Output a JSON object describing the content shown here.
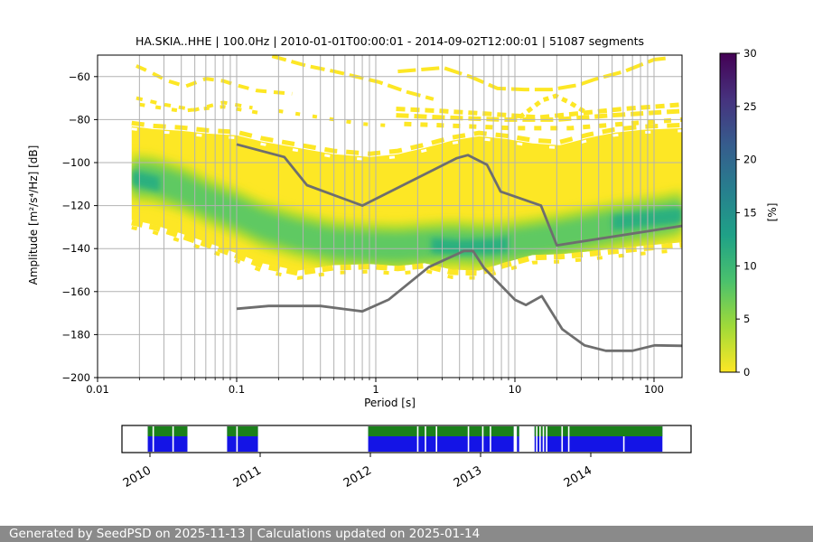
{
  "footer": {
    "text": "Generated by SeedPSD on 2025-11-13 | Calculations updated on 2025-01-14"
  },
  "chart_data": {
    "type": "heatmap",
    "title": "HA.SKIA..HHE | 100.0Hz | 2010-01-01T00:00:01 - 2014-09-02T12:00:01 | 51087 segments",
    "xlabel": "Period [s]",
    "ylabel": "Amplitude [m²/s⁴/Hz] [dB]",
    "x_scale": "log",
    "xlim": [
      0.01,
      160
    ],
    "ylim": [
      -200,
      -50
    ],
    "x_ticks": [
      {
        "value": 0.01,
        "label": "0.01"
      },
      {
        "value": 0.1,
        "label": "0.1"
      },
      {
        "value": 1,
        "label": "1"
      },
      {
        "value": 10,
        "label": "10"
      },
      {
        "value": 100,
        "label": "100"
      }
    ],
    "y_ticks": [
      {
        "value": -60,
        "label": "−60"
      },
      {
        "value": -80,
        "label": "−80"
      },
      {
        "value": -100,
        "label": "−100"
      },
      {
        "value": -120,
        "label": "−120"
      },
      {
        "value": -140,
        "label": "−140"
      },
      {
        "value": -160,
        "label": "−160"
      },
      {
        "value": -180,
        "label": "−180"
      },
      {
        "value": -200,
        "label": "−200"
      }
    ],
    "grid": true,
    "colorbar": {
      "label": "[%]",
      "lim": [
        0,
        30
      ],
      "ticks": [
        0,
        5,
        10,
        15,
        20,
        25,
        30
      ],
      "colormap": "viridis_r",
      "colors_top_to_bottom": [
        "#440154",
        "#46327e",
        "#365c8d",
        "#277f8e",
        "#1fa187",
        "#4ac16d",
        "#a0da39",
        "#fde725"
      ]
    },
    "colors": {
      "hist_low": "#fde725",
      "hist_halo": "#b5de2b",
      "hist_mode": "#5ec962",
      "hist_peak": "#2bb07f",
      "grid": "#b2b2b2",
      "noise_model": "#6e6e6e"
    },
    "noise_models": {
      "nhnm": [
        [
          0.1,
          -91.5
        ],
        [
          0.22,
          -97.4
        ],
        [
          0.32,
          -110.5
        ],
        [
          0.8,
          -120.0
        ],
        [
          3.8,
          -98.0
        ],
        [
          4.6,
          -96.5
        ],
        [
          6.3,
          -101.0
        ],
        [
          7.9,
          -113.5
        ],
        [
          15.4,
          -120.0
        ],
        [
          20.0,
          -138.5
        ],
        [
          160,
          -129.4
        ]
      ],
      "nlnm": [
        [
          0.1,
          -168.0
        ],
        [
          0.17,
          -166.7
        ],
        [
          0.4,
          -166.7
        ],
        [
          0.8,
          -169.2
        ],
        [
          1.24,
          -163.7
        ],
        [
          2.4,
          -148.6
        ],
        [
          4.3,
          -141.1
        ],
        [
          5.0,
          -141.1
        ],
        [
          6.0,
          -149.0
        ],
        [
          10.0,
          -163.8
        ],
        [
          12.0,
          -166.2
        ],
        [
          15.6,
          -162.1
        ],
        [
          21.9,
          -177.5
        ],
        [
          31.6,
          -185.0
        ],
        [
          45.0,
          -187.5
        ],
        [
          70.0,
          -187.5
        ],
        [
          101.0,
          -185.0
        ],
        [
          160,
          -185.2
        ]
      ]
    },
    "histogram": {
      "envelope": [
        [
          0.0176,
          -83.1,
          -126.7
        ],
        [
          0.025,
          -84.4,
          -128.8
        ],
        [
          0.04,
          -85.2,
          -133.0
        ],
        [
          0.062,
          -86.5,
          -137.2
        ],
        [
          0.1,
          -87.3,
          -142.2
        ],
        [
          0.152,
          -90.2,
          -146.8
        ],
        [
          0.276,
          -93.2,
          -150.2
        ],
        [
          0.5,
          -96.1,
          -147.7
        ],
        [
          0.91,
          -97.4,
          -147.2
        ],
        [
          1.44,
          -96.1,
          -148.1
        ],
        [
          2.25,
          -93.2,
          -146.8
        ],
        [
          3.52,
          -89.8,
          -149.8
        ],
        [
          5.52,
          -87.7,
          -150.2
        ],
        [
          8.6,
          -89.0,
          -146.4
        ],
        [
          13.4,
          -91.1,
          -143.0
        ],
        [
          21.1,
          -91.9,
          -142.6
        ],
        [
          33.2,
          -88.6,
          -141.4
        ],
        [
          52,
          -86.1,
          -140.1
        ],
        [
          81.5,
          -84.8,
          -138.8
        ],
        [
          159,
          -84.0,
          -137.1
        ]
      ],
      "mode": [
        [
          0.0176,
          -107.0
        ],
        [
          0.025,
          -107.8
        ],
        [
          0.04,
          -112.0
        ],
        [
          0.062,
          -117.9
        ],
        [
          0.1,
          -123.3
        ],
        [
          0.152,
          -128.8
        ],
        [
          0.276,
          -133.8
        ],
        [
          0.5,
          -137.6
        ],
        [
          0.91,
          -138.9
        ],
        [
          1.44,
          -139.3
        ],
        [
          2.25,
          -138.4
        ],
        [
          3.52,
          -137.6
        ],
        [
          5.52,
          -138.5
        ],
        [
          8.6,
          -138.0
        ],
        [
          13.4,
          -136.3
        ],
        [
          21.1,
          -134.2
        ],
        [
          33.2,
          -131.7
        ],
        [
          52,
          -129.2
        ],
        [
          81.5,
          -127.1
        ],
        [
          120,
          -125.5
        ],
        [
          159,
          -123.7
        ]
      ],
      "halo_halfwidth_db": 11,
      "mode_halfwidth_db": 7,
      "peak_halfwidth_db": 3.5,
      "peak_segments": [
        [
          [
            0.0176,
            -107.0
          ],
          [
            0.028,
            -110.0
          ]
        ],
        [
          [
            2.5,
            -138.5
          ],
          [
            4.0,
            -139.5
          ],
          [
            7.0,
            -139.0
          ],
          [
            9.0,
            -138.0
          ]
        ],
        [
          [
            50,
            -128.0
          ],
          [
            90,
            -126.0
          ],
          [
            159,
            -124.5
          ]
        ]
      ]
    },
    "artifact_traces": [
      {
        "dash": "12 8",
        "w": 4,
        "pts": [
          [
            0.019,
            -55
          ],
          [
            0.024,
            -58
          ],
          [
            0.032,
            -62
          ],
          [
            0.043,
            -64.5
          ],
          [
            0.06,
            -61
          ],
          [
            0.08,
            -62
          ],
          [
            0.1,
            -64
          ],
          [
            0.14,
            -66.5
          ],
          [
            0.25,
            -68
          ]
        ]
      },
      {
        "dash": "16 6",
        "w": 4,
        "pts": [
          [
            0.18,
            -50.5
          ],
          [
            0.32,
            -55
          ],
          [
            0.5,
            -57.5
          ],
          [
            1.05,
            -62.5
          ],
          [
            1.65,
            -67
          ],
          [
            2.6,
            -70.5
          ]
        ]
      },
      {
        "dash": "20 6",
        "w": 4,
        "pts": [
          [
            1.44,
            -57.6
          ],
          [
            3.06,
            -55.9
          ],
          [
            4.8,
            -60.1
          ],
          [
            7.5,
            -65.5
          ],
          [
            11.7,
            -66
          ],
          [
            18.3,
            -66
          ],
          [
            28.6,
            -63.9
          ],
          [
            37,
            -61.4
          ],
          [
            61,
            -57.6
          ],
          [
            100,
            -52.1
          ],
          [
            129,
            -51.3
          ]
        ]
      },
      {
        "dash": "6 5",
        "w": 5,
        "pts": [
          [
            10.8,
            -79
          ],
          [
            15.7,
            -71
          ],
          [
            19.7,
            -69
          ],
          [
            24.7,
            -72
          ],
          [
            33,
            -77
          ]
        ]
      },
      {
        "dash": "10 6",
        "w": 5,
        "pts": [
          [
            1.4,
            -75
          ],
          [
            3,
            -76
          ],
          [
            7,
            -77.5
          ],
          [
            15,
            -79
          ],
          [
            30,
            -77
          ],
          [
            60,
            -75
          ],
          [
            100,
            -74
          ],
          [
            159,
            -73
          ]
        ]
      },
      {
        "dash": "7 9",
        "w": 4,
        "pts": [
          [
            0.019,
            -70
          ],
          [
            0.03,
            -73
          ],
          [
            0.05,
            -75.5
          ],
          [
            0.08,
            -72
          ],
          [
            0.13,
            -74.5
          ]
        ]
      },
      {
        "dash": "14 6",
        "w": 5,
        "pts": [
          [
            1.4,
            -78
          ],
          [
            3,
            -79
          ],
          [
            8,
            -80
          ],
          [
            20,
            -80
          ],
          [
            50,
            -78
          ],
          [
            159,
            -76
          ]
        ]
      },
      {
        "dash": "8 10",
        "w": 5,
        "pts": [
          [
            1.6,
            -82
          ],
          [
            4,
            -83
          ],
          [
            10,
            -84
          ],
          [
            25,
            -84
          ],
          [
            60,
            -82
          ],
          [
            159,
            -80
          ]
        ]
      },
      {
        "dash": "6 12",
        "w": 4,
        "pts": [
          [
            0.02,
            -73
          ],
          [
            0.04,
            -76
          ],
          [
            0.08,
            -74
          ],
          [
            0.15,
            -77
          ]
        ]
      },
      {
        "dash": "5 14",
        "w": 4,
        "pts": [
          [
            0.2,
            -76
          ],
          [
            0.4,
            -79
          ],
          [
            0.8,
            -82
          ],
          [
            1.4,
            -83
          ]
        ]
      }
    ]
  },
  "timeline": {
    "years": [
      2010,
      2011,
      2012,
      2013,
      2014
    ],
    "colors": {
      "top_row": "#1a801a",
      "bottom_row": "#1414e6"
    },
    "segments": [
      {
        "start": 2009.98,
        "end": 2010.34
      },
      {
        "start": 2010.7,
        "end": 2010.98
      },
      {
        "start": 2011.98,
        "end": 2013.3
      },
      {
        "start": 2013.33,
        "end": 2013.35
      },
      {
        "start": 2013.49,
        "end": 2014.65
      }
    ],
    "gaps": [
      2010.03,
      2010.21,
      2010.79,
      2012.43,
      2012.5,
      2012.6,
      2012.89,
      2013.02,
      2013.09,
      2013.51,
      2013.54,
      2013.57,
      2013.6,
      2013.74,
      2013.8
    ],
    "blue_only_gaps": [
      2014.3
    ]
  }
}
